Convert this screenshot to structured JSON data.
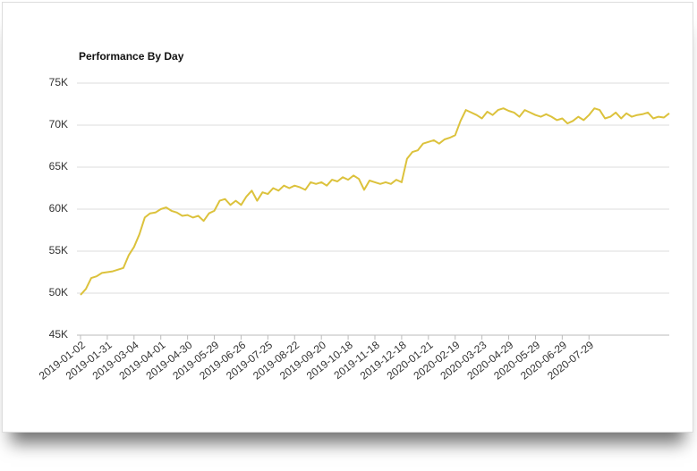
{
  "chart_data": {
    "type": "line",
    "title": "Performance By Day",
    "categories": [
      "2019-01-02",
      null,
      null,
      null,
      null,
      "2019-01-31",
      null,
      null,
      null,
      null,
      "2019-03-04",
      null,
      null,
      null,
      null,
      "2019-04-01",
      null,
      null,
      null,
      null,
      "2019-04-30",
      null,
      null,
      null,
      null,
      "2019-05-29",
      null,
      null,
      null,
      null,
      "2019-06-26",
      null,
      null,
      null,
      null,
      "2019-07-25",
      null,
      null,
      null,
      null,
      "2019-08-22",
      null,
      null,
      null,
      null,
      "2019-09-20",
      null,
      null,
      null,
      null,
      "2019-10-18",
      null,
      null,
      null,
      null,
      "2019-11-18",
      null,
      null,
      null,
      null,
      "2019-12-18",
      null,
      null,
      null,
      null,
      "2020-01-21",
      null,
      null,
      null,
      null,
      "2020-02-19",
      null,
      null,
      null,
      null,
      "2020-03-23",
      null,
      null,
      null,
      null,
      "2020-04-29",
      null,
      null,
      null,
      null,
      "2020-05-29",
      null,
      null,
      null,
      null,
      "2020-06-29",
      null,
      null,
      null,
      null,
      "2020-07-29",
      null,
      null,
      null,
      null,
      null,
      null,
      null,
      null,
      null,
      null,
      null,
      null,
      null,
      null,
      null
    ],
    "values": [
      49800,
      50500,
      51800,
      52000,
      52400,
      52500,
      52600,
      52800,
      53000,
      54500,
      55500,
      57000,
      59000,
      59500,
      59600,
      60000,
      60200,
      59800,
      59600,
      59200,
      59300,
      59000,
      59200,
      58600,
      59500,
      59800,
      61000,
      61200,
      60500,
      61000,
      60500,
      61500,
      62200,
      61000,
      62000,
      61800,
      62500,
      62200,
      62800,
      62500,
      62800,
      62600,
      62300,
      63200,
      63000,
      63200,
      62800,
      63500,
      63300,
      63800,
      63500,
      64000,
      63600,
      62300,
      63400,
      63200,
      63000,
      63200,
      63000,
      63500,
      63200,
      66000,
      66800,
      67000,
      67800,
      68000,
      68200,
      67800,
      68300,
      68500,
      68800,
      70500,
      71800,
      71500,
      71200,
      70800,
      71600,
      71200,
      71800,
      72000,
      71700,
      71500,
      71000,
      71800,
      71500,
      71200,
      71000,
      71300,
      71000,
      70600,
      70800,
      70200,
      70500,
      71000,
      70600,
      71200,
      72000,
      71800,
      70800,
      71000,
      71500,
      70800,
      71400,
      71000,
      71200,
      71300,
      71500,
      70800,
      71000,
      70900,
      71400
    ],
    "color": "#dcc23c",
    "ylim": [
      45000,
      75000
    ],
    "yticks": [
      {
        "value": 45000,
        "label": "45K"
      },
      {
        "value": 50000,
        "label": "50K"
      },
      {
        "value": 55000,
        "label": "55K"
      },
      {
        "value": 60000,
        "label": "60K"
      },
      {
        "value": 65000,
        "label": "65K"
      },
      {
        "value": 70000,
        "label": "70K"
      },
      {
        "value": 75000,
        "label": "75K"
      }
    ],
    "grid": true
  }
}
